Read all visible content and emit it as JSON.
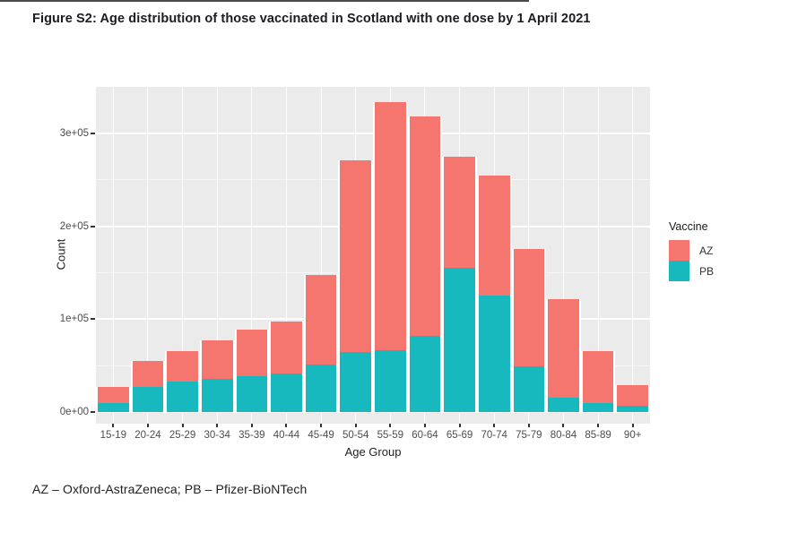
{
  "page": {
    "title": "Figure S2: Age distribution of those vaccinated in Scotland with one dose by 1 April 2021",
    "footnote": "AZ – Oxford-AstraZeneca; PB – Pfizer-BioNTech"
  },
  "chart_data": {
    "type": "bar",
    "stacked": true,
    "xlabel": "Age Group",
    "ylabel": "Count",
    "legend_title": "Vaccine",
    "legend_position": "right",
    "categories": [
      "15-19",
      "20-24",
      "25-29",
      "30-34",
      "35-39",
      "40-44",
      "45-49",
      "50-54",
      "55-59",
      "60-64",
      "65-69",
      "70-74",
      "75-79",
      "80-84",
      "85-89",
      "90+"
    ],
    "series": [
      {
        "name": "AZ",
        "color": "#f4766e",
        "values": [
          17000,
          28000,
          33000,
          41000,
          50000,
          56000,
          97000,
          206000,
          267000,
          236000,
          120000,
          130000,
          127000,
          107000,
          56000,
          22000
        ]
      },
      {
        "name": "PB",
        "color": "#17b8be",
        "values": [
          10000,
          27000,
          33000,
          36000,
          39000,
          41000,
          51000,
          65000,
          67000,
          82000,
          155000,
          125000,
          49000,
          15000,
          10000,
          7000
        ]
      }
    ],
    "stack_order_bottom_to_top": [
      "PB",
      "AZ"
    ],
    "totals": [
      27000,
      55000,
      66000,
      77000,
      89000,
      97000,
      148000,
      271000,
      334000,
      318000,
      275000,
      255000,
      176000,
      122000,
      66000,
      29000
    ],
    "y_ticks": [
      {
        "value": 0,
        "label": "0e+00"
      },
      {
        "value": 100000,
        "label": "1e+05"
      },
      {
        "value": 200000,
        "label": "2e+05"
      },
      {
        "value": 300000,
        "label": "3e+05"
      }
    ],
    "y_minor_ticks": [
      50000,
      150000,
      250000
    ],
    "ylim": [
      0,
      350000
    ],
    "grid": "on",
    "panel_bg": "#ebebeb",
    "grid_color": "#ffffff"
  }
}
